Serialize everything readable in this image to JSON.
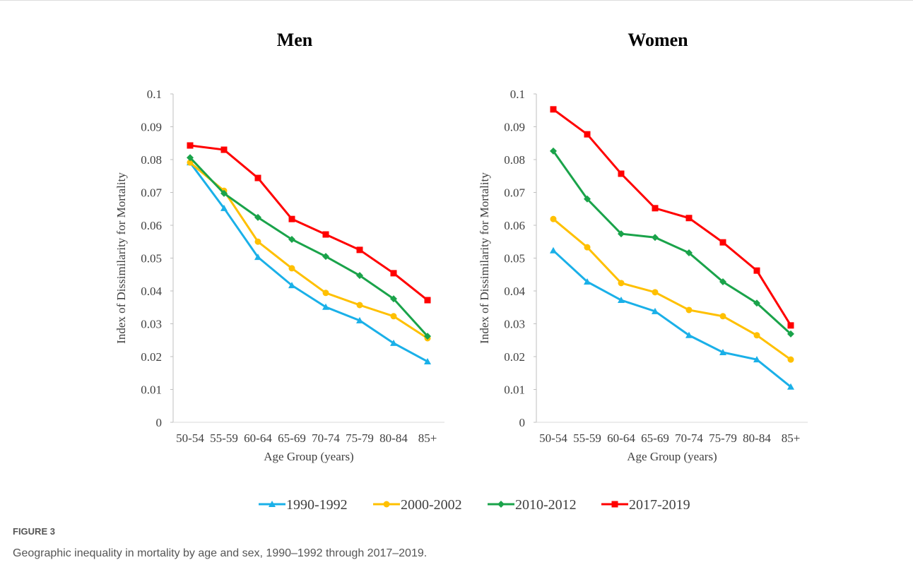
{
  "chart_data": [
    {
      "type": "line",
      "title": "Men",
      "x_label": "Age Group (years)",
      "y_label": "Index of Dissimilarity for Mortality",
      "categories": [
        "50-54",
        "55-59",
        "60-64",
        "65-69",
        "70-74",
        "75-79",
        "80-84",
        "85+"
      ],
      "series": [
        {
          "values": [
            0.0791,
            0.0652,
            0.0503,
            0.0417,
            0.0351,
            0.031,
            0.0241,
            0.0185
          ]
        },
        {
          "values": [
            0.0791,
            0.0705,
            0.055,
            0.0469,
            0.0394,
            0.0357,
            0.0323,
            0.0256
          ]
        },
        {
          "values": [
            0.0806,
            0.0697,
            0.0624,
            0.0557,
            0.0505,
            0.0447,
            0.0376,
            0.0262
          ]
        },
        {
          "values": [
            0.0843,
            0.083,
            0.0744,
            0.0619,
            0.0572,
            0.0525,
            0.0454,
            0.0372
          ]
        }
      ],
      "ylim": [
        0,
        0.1
      ],
      "yticks": [
        0,
        0.01,
        0.02,
        0.03,
        0.04,
        0.05,
        0.06,
        0.07,
        0.08,
        0.09,
        0.1
      ]
    },
    {
      "type": "line",
      "title": "Women",
      "x_label": "Age Group (years)",
      "y_label": "Index of Dissimilarity for Mortality",
      "categories": [
        "50-54",
        "55-59",
        "60-64",
        "65-69",
        "70-74",
        "75-79",
        "80-84",
        "85+"
      ],
      "series": [
        {
          "values": [
            0.0523,
            0.0428,
            0.0372,
            0.0338,
            0.0265,
            0.0213,
            0.0191,
            0.0108
          ]
        },
        {
          "values": [
            0.0619,
            0.0533,
            0.0424,
            0.0396,
            0.0342,
            0.0323,
            0.0265,
            0.0191
          ]
        },
        {
          "values": [
            0.0826,
            0.068,
            0.0574,
            0.0563,
            0.0516,
            0.0428,
            0.0363,
            0.0269
          ]
        },
        {
          "values": [
            0.0953,
            0.0877,
            0.0757,
            0.0652,
            0.0622,
            0.0548,
            0.0462,
            0.0295
          ]
        }
      ],
      "ylim": [
        0,
        0.1
      ],
      "yticks": [
        0,
        0.01,
        0.02,
        0.03,
        0.04,
        0.05,
        0.06,
        0.07,
        0.08,
        0.09,
        0.1
      ]
    }
  ],
  "legend": [
    {
      "name": "1990-1992",
      "color": "#1ab0e8",
      "marker": "triangle"
    },
    {
      "name": "2000-2002",
      "color": "#ffc000",
      "marker": "circle"
    },
    {
      "name": "2010-2012",
      "color": "#1aa34a",
      "marker": "diamond"
    },
    {
      "name": "2017-2019",
      "color": "#ff0000",
      "marker": "square"
    }
  ],
  "figure_label": "FIGURE 3",
  "caption": "Geographic inequality in mortality by age and sex, 1990–1992 through 2017–2019."
}
